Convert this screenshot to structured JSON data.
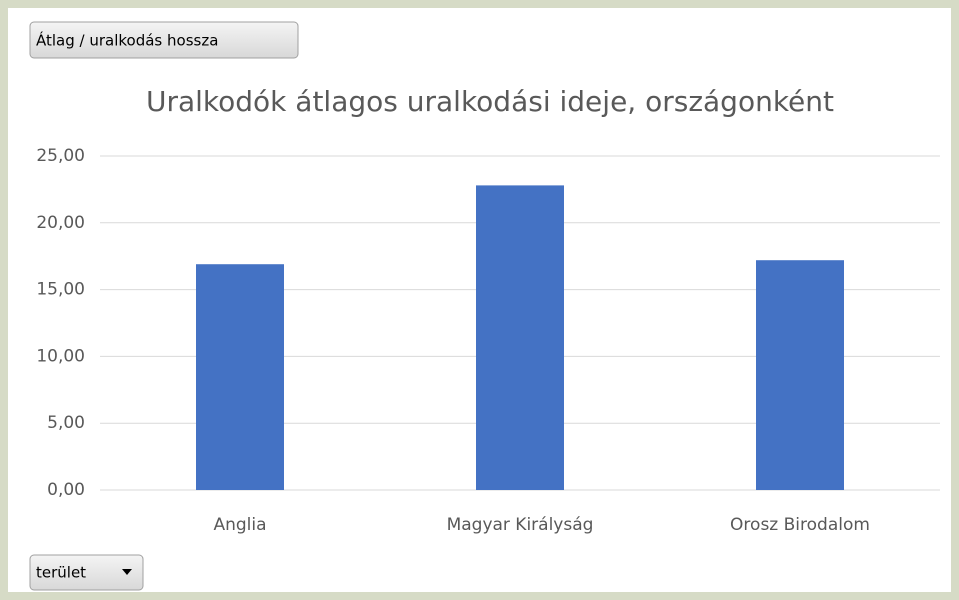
{
  "pivot_buttons": {
    "value_field": "Átlag / uralkodás hossza",
    "axis_field": "terület"
  },
  "chart_data": {
    "type": "bar",
    "title": "Uralkodók átlagos uralkodási ideje, országonként",
    "categories": [
      "Anglia",
      "Magyar Királyság",
      "Orosz Birodalom"
    ],
    "values": [
      16.9,
      22.8,
      17.2
    ],
    "color": "#4472c4",
    "ylim": [
      0,
      25
    ],
    "yticks": [
      {
        "value": 0,
        "label": "0,00"
      },
      {
        "value": 5,
        "label": "5,00"
      },
      {
        "value": 10,
        "label": "10,00"
      },
      {
        "value": 15,
        "label": "15,00"
      },
      {
        "value": 20,
        "label": "20,00"
      },
      {
        "value": 25,
        "label": "25,00"
      }
    ],
    "grid": true
  }
}
